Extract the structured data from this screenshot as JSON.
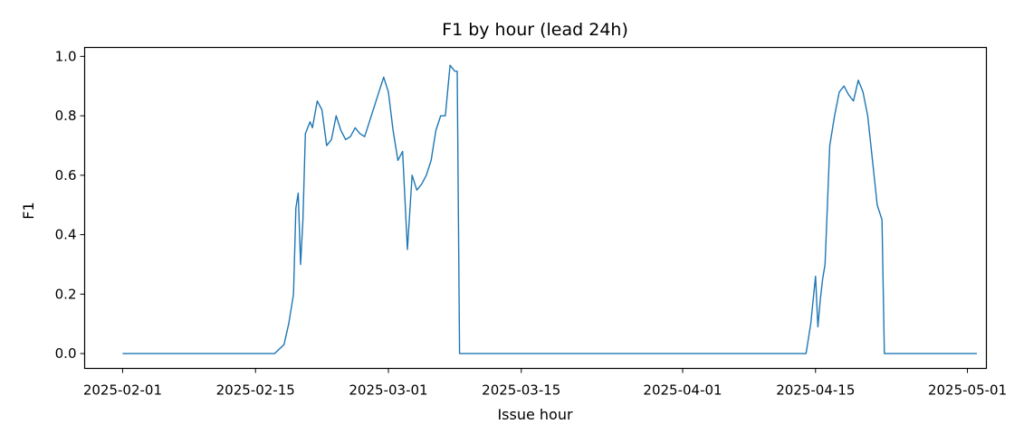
{
  "chart_data": {
    "type": "line",
    "title": "F1 by hour (lead 24h)",
    "xlabel": "Issue hour",
    "ylabel": "F1",
    "x_range": [
      "2025-01-28",
      "2025-05-03"
    ],
    "ylim": [
      -0.05,
      1.03
    ],
    "x_ticks": [
      "2025-02-01",
      "2025-02-15",
      "2025-03-01",
      "2025-03-15",
      "2025-04-01",
      "2025-04-15",
      "2025-05-01"
    ],
    "y_ticks": [
      "0.0",
      "0.2",
      "0.4",
      "0.6",
      "0.8",
      "1.0"
    ],
    "grid": false,
    "line_color": "#1f77b4",
    "series": [
      {
        "x": [
          "2025-02-01",
          "2025-02-17",
          "2025-02-18",
          "2025-02-18 12:00",
          "2025-02-19",
          "2025-02-19 06:00",
          "2025-02-19 12:00",
          "2025-02-19 18:00",
          "2025-02-20",
          "2025-02-20 06:00",
          "2025-02-20 12:00",
          "2025-02-20 18:00",
          "2025-02-21",
          "2025-02-21 12:00",
          "2025-02-22",
          "2025-02-22 12:00",
          "2025-02-23",
          "2025-02-23 12:00",
          "2025-02-24",
          "2025-02-24 12:00",
          "2025-02-25",
          "2025-02-25 12:00",
          "2025-02-26",
          "2025-02-26 12:00",
          "2025-02-27",
          "2025-02-27 12:00",
          "2025-02-28",
          "2025-02-28 12:00",
          "2025-03-01",
          "2025-03-01 12:00",
          "2025-03-02",
          "2025-03-02 12:00",
          "2025-03-03",
          "2025-03-03 12:00",
          "2025-03-04",
          "2025-03-04 12:00",
          "2025-03-05",
          "2025-03-05 12:00",
          "2025-03-06",
          "2025-03-06 12:00",
          "2025-03-07",
          "2025-03-07 12:00",
          "2025-03-08",
          "2025-03-08 06:00",
          "2025-03-08 12:00",
          "2025-03-08 18:00",
          "2025-03-09",
          "2025-04-14",
          "2025-04-14 12:00",
          "2025-04-15",
          "2025-04-15 06:00",
          "2025-04-15 12:00",
          "2025-04-15 18:00",
          "2025-04-16",
          "2025-04-16 12:00",
          "2025-04-17",
          "2025-04-17 12:00",
          "2025-04-18",
          "2025-04-18 12:00",
          "2025-04-19",
          "2025-04-19 12:00",
          "2025-04-20",
          "2025-04-20 12:00",
          "2025-04-21",
          "2025-04-21 12:00",
          "2025-04-22",
          "2025-04-22 06:00",
          "2025-04-22 12:00",
          "2025-04-22 18:00",
          "2025-04-23",
          "2025-05-02"
        ],
        "y": [
          0,
          0,
          0.03,
          0.1,
          0.2,
          0.49,
          0.54,
          0.3,
          0.45,
          0.74,
          0.76,
          0.78,
          0.76,
          0.85,
          0.82,
          0.7,
          0.72,
          0.8,
          0.75,
          0.72,
          0.73,
          0.76,
          0.74,
          0.73,
          0.78,
          0.83,
          0.88,
          0.93,
          0.88,
          0.75,
          0.65,
          0.68,
          0.35,
          0.6,
          0.55,
          0.57,
          0.6,
          0.65,
          0.75,
          0.8,
          0.8,
          0.97,
          0.95,
          0.95,
          0,
          0,
          0,
          0,
          0.1,
          0.26,
          0.09,
          0.18,
          0.25,
          0.3,
          0.7,
          0.8,
          0.88,
          0.9,
          0.87,
          0.85,
          0.92,
          0.88,
          0.8,
          0.65,
          0.5,
          0.45,
          0,
          0,
          0,
          0,
          0
        ]
      }
    ]
  }
}
